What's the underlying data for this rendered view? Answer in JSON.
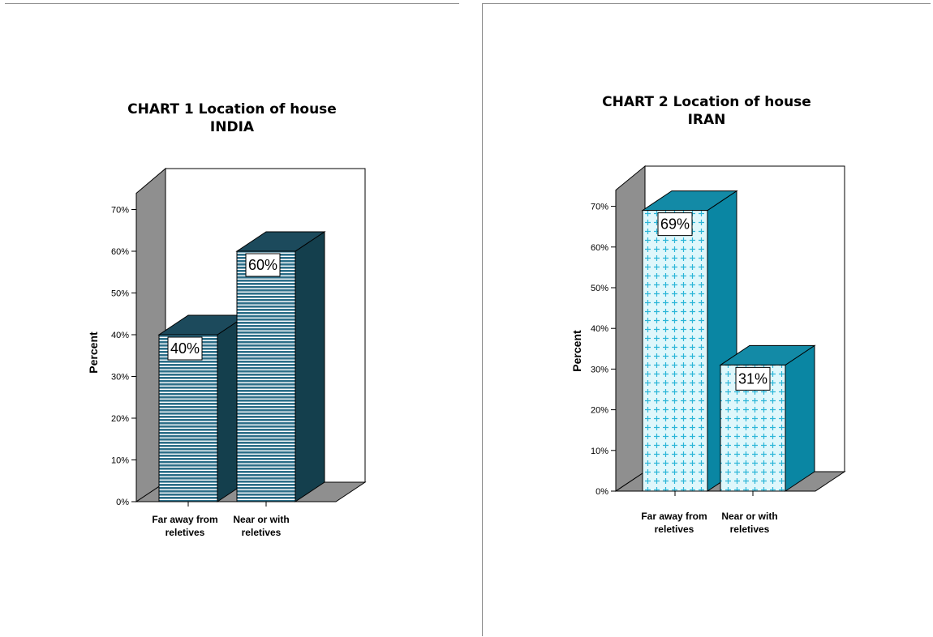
{
  "chart_data": [
    {
      "type": "bar",
      "title": "CHART 1 Location of house",
      "subtitle": "INDIA",
      "ylabel": "Percent",
      "categories": [
        "Far away from\nreletives",
        "Near or with\nreletives"
      ],
      "values": [
        40,
        60
      ],
      "data_labels": [
        "40%",
        "60%"
      ],
      "yticks": [
        "0%",
        "10%",
        "20%",
        "30%",
        "40%",
        "50%",
        "60%",
        "70%"
      ],
      "ylim": [
        0,
        70
      ],
      "style": "3d",
      "colors": {
        "front": "#2c6e88",
        "top": "#1c4a5c",
        "side": "#143f4d",
        "back_wall": "#8f8f8f"
      }
    },
    {
      "type": "bar",
      "title": "CHART 2 Location of house",
      "subtitle": "IRAN",
      "ylabel": "Percent",
      "categories": [
        "Far away from\nreletives",
        "Near or with\nreletives"
      ],
      "values": [
        69,
        31
      ],
      "data_labels": [
        "69%",
        "31%"
      ],
      "yticks": [
        "0%",
        "10%",
        "20%",
        "30%",
        "40%",
        "50%",
        "60%",
        "70%"
      ],
      "ylim": [
        0,
        70
      ],
      "style": "3d",
      "colors": {
        "front": "#dff7fb",
        "front_mark": "#2bb6d8",
        "top": "#138aa6",
        "side": "#0a86a3",
        "back_wall": "#8f8f8f"
      }
    }
  ]
}
